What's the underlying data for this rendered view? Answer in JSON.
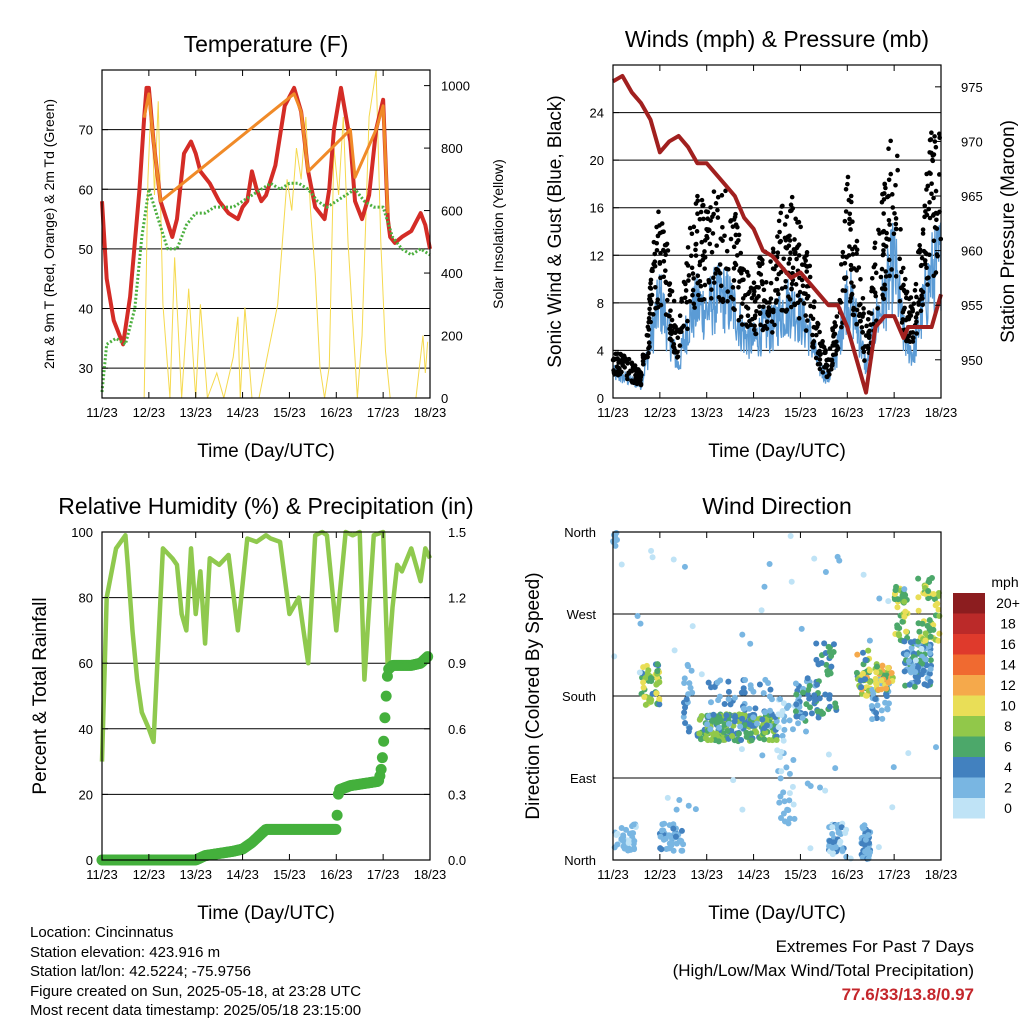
{
  "chart_data": [
    {
      "type": "line",
      "title": "Temperature (F)",
      "xlabel": "Time (Day/UTC)",
      "ylabel": "2m & 9m T (Red, Orange) & 2m Td (Green)",
      "y2label": "Solar Insolation (Yellow)",
      "x_ticks": [
        "11/23",
        "12/23",
        "13/23",
        "14/23",
        "15/23",
        "16/23",
        "17/23",
        "18/23"
      ],
      "ylim": [
        25,
        80
      ],
      "y_ticks": [
        30,
        40,
        50,
        60,
        70
      ],
      "y2lim": [
        0,
        1050
      ],
      "y2_ticks": [
        0,
        200,
        400,
        600,
        800,
        1000
      ],
      "grid": true,
      "series": [
        {
          "color": "#d42c26",
          "x": [
            0,
            0.1,
            0.25,
            0.45,
            0.6,
            0.8,
            0.9,
            0.95,
            1.0,
            1.1,
            1.25,
            1.5,
            1.6,
            1.75,
            1.9,
            2.0,
            2.1,
            2.3,
            2.5,
            2.7,
            2.9,
            3.0,
            3.1,
            3.2,
            3.3,
            3.4,
            3.5,
            3.7,
            3.9,
            4.1,
            4.25,
            4.4,
            4.55,
            4.75,
            4.85,
            4.95,
            5.1,
            5.3,
            5.4,
            5.55,
            5.7,
            5.85,
            6.0,
            6.1,
            6.15,
            6.25,
            6.4,
            6.6,
            6.8,
            6.9,
            7.0
          ],
          "y": [
            58,
            45,
            38,
            34,
            42,
            60,
            72,
            77,
            77,
            68,
            58,
            52,
            55,
            66,
            68,
            66,
            63,
            61,
            58,
            56,
            55,
            57,
            58,
            63,
            60,
            58,
            59,
            64,
            74,
            77,
            73,
            63,
            57,
            55,
            60,
            70,
            77,
            68,
            58,
            55,
            59,
            70,
            75,
            55,
            52,
            51,
            52,
            53,
            56,
            54,
            50
          ]
        },
        {
          "color": "#f08a28",
          "x": [
            0.9,
            1.0,
            1.1,
            1.25,
            4.1,
            4.25,
            4.4,
            5.3,
            5.4,
            5.85,
            6.0,
            6.1
          ],
          "y": [
            72,
            76,
            68,
            58,
            76,
            73,
            63,
            70,
            62,
            70,
            74,
            56
          ]
        },
        {
          "color": "#4caf3f",
          "x": [
            0,
            0.1,
            0.3,
            0.5,
            0.7,
            0.85,
            1.0,
            1.2,
            1.4,
            1.6,
            1.8,
            2.0,
            2.2,
            2.4,
            2.6,
            2.8,
            3.0,
            3.2,
            3.4,
            3.6,
            3.8,
            4.0,
            4.2,
            4.4,
            4.6,
            4.8,
            5.0,
            5.2,
            5.4,
            5.6,
            5.8,
            6.0,
            6.2,
            6.4,
            6.6,
            6.8,
            7.0
          ],
          "y": [
            26,
            34,
            35,
            34,
            40,
            52,
            60,
            55,
            50,
            50,
            54,
            56,
            56,
            57,
            57,
            57,
            58,
            59,
            60,
            61,
            60,
            61,
            61,
            60,
            58,
            57,
            58,
            59,
            60,
            58,
            57,
            57,
            52,
            50,
            49,
            50,
            49
          ]
        }
      ],
      "insolation": {
        "color": "#f5d94e",
        "x": [
          0.9,
          0.98,
          1.05,
          1.12,
          1.2,
          1.3,
          1.45,
          1.55,
          1.7,
          1.85,
          2.0,
          2.1,
          2.25,
          2.45,
          2.6,
          2.8,
          2.9,
          2.95,
          3.05,
          3.2,
          3.35,
          3.55,
          3.75,
          3.85,
          3.95,
          4.05,
          4.15,
          4.25,
          4.35,
          4.45,
          4.55,
          4.65,
          4.75,
          4.85,
          4.95,
          5.05,
          5.15,
          5.25,
          5.35,
          5.45,
          5.55,
          5.7,
          5.85,
          5.95,
          6.05,
          6.15,
          6.35,
          6.55,
          6.7,
          6.85,
          6.9,
          6.95
        ],
        "y": [
          0,
          700,
          960,
          650,
          950,
          300,
          0,
          450,
          0,
          350,
          0,
          300,
          0,
          80,
          0,
          130,
          260,
          0,
          290,
          0,
          0,
          150,
          300,
          500,
          700,
          600,
          800,
          700,
          900,
          600,
          400,
          100,
          0,
          100,
          800,
          650,
          900,
          500,
          250,
          0,
          200,
          900,
          1050,
          500,
          150,
          0,
          0,
          0,
          0,
          200,
          80,
          180
        ]
      }
    },
    {
      "type": "scatter",
      "title": "Winds (mph) & Pressure (mb)",
      "xlabel": "Time (Day/UTC)",
      "ylabel": "Sonic Wind & Gust (Blue, Black)",
      "y2label": "Station Pressure (Maroon)",
      "x_ticks": [
        "11/23",
        "12/23",
        "13/23",
        "14/23",
        "15/23",
        "16/23",
        "17/23",
        "18/23"
      ],
      "ylim": [
        0,
        28
      ],
      "y_ticks": [
        0,
        4,
        8,
        12,
        16,
        20,
        24
      ],
      "y2lim": [
        946.5,
        977
      ],
      "y2_ticks": [
        950,
        955,
        960,
        965,
        970,
        975
      ],
      "grid": true,
      "pressure": {
        "color": "#a1201f",
        "x": [
          0,
          0.2,
          0.4,
          0.6,
          0.8,
          1.0,
          1.2,
          1.4,
          1.6,
          1.8,
          2.0,
          2.2,
          2.4,
          2.6,
          2.8,
          3.0,
          3.2,
          3.4,
          3.6,
          3.8,
          4.0,
          4.2,
          4.4,
          4.6,
          4.8,
          5.0,
          5.2,
          5.4,
          5.6,
          5.8,
          6.0,
          6.1,
          6.2,
          6.3,
          6.4,
          6.6,
          6.8,
          7.0
        ],
        "y": [
          975.5,
          976,
          974.5,
          973.5,
          972,
          969,
          970,
          970.5,
          969.5,
          968,
          968,
          967,
          966,
          965,
          963,
          962,
          960,
          959.5,
          958.5,
          957.5,
          958,
          957,
          956,
          955,
          955,
          953,
          950,
          947,
          953,
          954,
          954,
          953,
          952,
          953,
          953,
          953,
          953,
          956
        ]
      },
      "gust_profile": {
        "x": [
          0,
          0.3,
          0.6,
          0.8,
          1.0,
          1.2,
          1.4,
          1.6,
          1.8,
          2.0,
          2.2,
          2.4,
          2.6,
          2.8,
          3.0,
          3.2,
          3.4,
          3.6,
          3.8,
          4.0,
          4.2,
          4.4,
          4.6,
          4.8,
          5.0,
          5.2,
          5.4,
          5.6,
          5.8,
          6.0,
          6.2,
          6.4,
          6.6,
          6.8,
          7.0
        ],
        "y": [
          4,
          3,
          2,
          9,
          16,
          10,
          5,
          12,
          15,
          14,
          16,
          16,
          14,
          10,
          9,
          11,
          11,
          14,
          15,
          13,
          10,
          5,
          3,
          8,
          17,
          12,
          5,
          12,
          16,
          22,
          10,
          7,
          14,
          20,
          22
        ]
      },
      "wind_ratio": 0.55,
      "wind_color": "#5b9bd5",
      "gust_color": "#000000"
    },
    {
      "type": "line",
      "title": "Relative Humidity (%) & Precipitation (in)",
      "xlabel": "Time (Day/UTC)",
      "ylabel": "Percent & Total Rainfall",
      "x_ticks": [
        "11/23",
        "12/23",
        "13/23",
        "14/23",
        "15/23",
        "16/23",
        "17/23",
        "18/23"
      ],
      "ylim": [
        0,
        100
      ],
      "y_ticks": [
        0,
        20,
        40,
        60,
        80,
        100
      ],
      "y2lim": [
        0,
        1.5
      ],
      "y2_ticks": [
        "0.0",
        "0.3",
        "0.6",
        "0.9",
        "1.2",
        "1.5"
      ],
      "grid": true,
      "series": [
        {
          "name": "RH",
          "color": "#8fc94e",
          "x": [
            0,
            0.1,
            0.3,
            0.5,
            0.55,
            0.65,
            0.75,
            0.85,
            1.0,
            1.1,
            1.3,
            1.5,
            1.6,
            1.7,
            1.8,
            1.9,
            2.0,
            2.1,
            2.2,
            2.3,
            2.5,
            2.7,
            2.9,
            3.1,
            3.3,
            3.5,
            3.6,
            3.8,
            4.0,
            4.2,
            4.4,
            4.55,
            4.7,
            4.8,
            5.0,
            5.2,
            5.35,
            5.5,
            5.6,
            5.8,
            6.0,
            6.1,
            6.2,
            6.3,
            6.4,
            6.6,
            6.8,
            6.9,
            7.0
          ],
          "y": [
            30,
            80,
            95,
            99,
            90,
            70,
            55,
            45,
            40,
            36,
            95,
            92,
            90,
            75,
            70,
            95,
            75,
            88,
            66,
            92,
            90,
            93,
            70,
            98,
            97,
            99,
            98,
            97,
            75,
            80,
            60,
            99,
            100,
            99,
            70,
            100,
            99,
            100,
            55,
            99,
            100,
            58,
            77,
            90,
            88,
            95,
            85,
            95,
            92
          ]
        },
        {
          "name": "Rain",
          "color": "#44b03c",
          "x": [
            0,
            0.5,
            1.0,
            1.5,
            2.0,
            2.2,
            2.5,
            2.8,
            3.0,
            3.2,
            3.5,
            4.0,
            4.5,
            5.0,
            5.05,
            5.3,
            5.6,
            5.9,
            5.95,
            6.0,
            6.05,
            6.1,
            6.2,
            6.4,
            6.6,
            6.8,
            6.95
          ],
          "y": [
            0,
            0,
            0,
            0,
            0,
            0.02,
            0.03,
            0.04,
            0.05,
            0.08,
            0.14,
            0.14,
            0.14,
            0.14,
            0.32,
            0.34,
            0.35,
            0.36,
            0.4,
            0.5,
            0.7,
            0.87,
            0.89,
            0.89,
            0.89,
            0.9,
            0.93
          ]
        }
      ]
    },
    {
      "type": "scatter",
      "title": "Wind Direction",
      "xlabel": "Time (Day/UTC)",
      "ylabel": "Direction (Colored By Speed)",
      "x_ticks": [
        "11/23",
        "12/23",
        "13/23",
        "14/23",
        "15/23",
        "16/23",
        "17/23",
        "18/23"
      ],
      "y_ticks": [
        "North",
        "East",
        "South",
        "West",
        "North"
      ],
      "grid": true,
      "legend_title": "mph",
      "legend_labels": [
        "20+",
        "18",
        "16",
        "14",
        "12",
        "10",
        "8",
        "6",
        "4",
        "2",
        "0"
      ],
      "legend_colors": [
        "#8c1d1f",
        "#bb2a29",
        "#df3a2c",
        "#f06a30",
        "#f5a94b",
        "#e9de57",
        "#91c84a",
        "#4ca86a",
        "#4281bf",
        "#79b6e2",
        "#bfe3f6"
      ],
      "clusters": [
        {
          "x": [
            0,
            0.5
          ],
          "dir": [
            10,
            40
          ],
          "n": 40,
          "speed": [
            0,
            3
          ]
        },
        {
          "x": [
            0,
            0.1
          ],
          "dir": [
            340,
            360
          ],
          "n": 8,
          "speed": [
            1,
            3
          ]
        },
        {
          "x": [
            0.6,
            1.0
          ],
          "dir": [
            170,
            215
          ],
          "n": 50,
          "speed": [
            4,
            11
          ]
        },
        {
          "x": [
            1.0,
            1.5
          ],
          "dir": [
            10,
            40
          ],
          "n": 40,
          "speed": [
            1,
            4
          ]
        },
        {
          "x": [
            1.5,
            1.7
          ],
          "dir": [
            140,
            220
          ],
          "n": 20,
          "speed": [
            1,
            4
          ]
        },
        {
          "x": [
            1.8,
            3.5
          ],
          "dir": [
            130,
            160
          ],
          "n": 180,
          "speed": [
            4,
            9
          ]
        },
        {
          "x": [
            2.0,
            3.5
          ],
          "dir": [
            140,
            200
          ],
          "n": 60,
          "speed": [
            1,
            5
          ]
        },
        {
          "x": [
            3.5,
            3.9
          ],
          "dir": [
            40,
            180
          ],
          "n": 40,
          "speed": [
            0,
            3
          ]
        },
        {
          "x": [
            3.9,
            4.4
          ],
          "dir": [
            150,
            200
          ],
          "n": 50,
          "speed": [
            2,
            6
          ]
        },
        {
          "x": [
            4.3,
            4.8
          ],
          "dir": [
            160,
            240
          ],
          "n": 35,
          "speed": [
            3,
            7
          ]
        },
        {
          "x": [
            4.6,
            5.0
          ],
          "dir": [
            5,
            40
          ],
          "n": 40,
          "speed": [
            0,
            4
          ]
        },
        {
          "x": [
            5.2,
            5.5
          ],
          "dir": [
            180,
            230
          ],
          "n": 40,
          "speed": [
            4,
            12
          ]
        },
        {
          "x": [
            5.3,
            5.5
          ],
          "dir": [
            0,
            40
          ],
          "n": 40,
          "speed": [
            1,
            4
          ]
        },
        {
          "x": [
            5.5,
            5.9
          ],
          "dir": [
            150,
            200
          ],
          "n": 30,
          "speed": [
            1,
            4
          ]
        },
        {
          "x": [
            5.6,
            6.0
          ],
          "dir": [
            185,
            215
          ],
          "n": 40,
          "speed": [
            5,
            13
          ]
        },
        {
          "x": [
            6.0,
            6.3
          ],
          "dir": [
            240,
            300
          ],
          "n": 40,
          "speed": [
            5,
            10
          ]
        },
        {
          "x": [
            6.2,
            6.8
          ],
          "dir": [
            190,
            240
          ],
          "n": 90,
          "speed": [
            2,
            6
          ]
        },
        {
          "x": [
            6.5,
            7.0
          ],
          "dir": [
            240,
            310
          ],
          "n": 50,
          "speed": [
            5,
            11
          ]
        },
        {
          "x": [
            0,
            7.0
          ],
          "dir": [
            0,
            360
          ],
          "n": 60,
          "speed": [
            0,
            2
          ]
        }
      ]
    }
  ],
  "footer": {
    "location": "Location: Cincinnatus",
    "elevation": "Station elevation: 423.916 m",
    "latlon": "Station lat/lon: 42.5224; -75.9756",
    "created": "Figure created on Sun, 2025-05-18, at 23:28 UTC",
    "recent": "Most recent data timestamp: 2025/05/18 23:15:00",
    "extremes_title": "Extremes For Past 7 Days",
    "extremes_subtitle": "(High/Low/Max Wind/Total Precipitation)",
    "extremes_values": "77.6/33/13.8/0.97"
  }
}
